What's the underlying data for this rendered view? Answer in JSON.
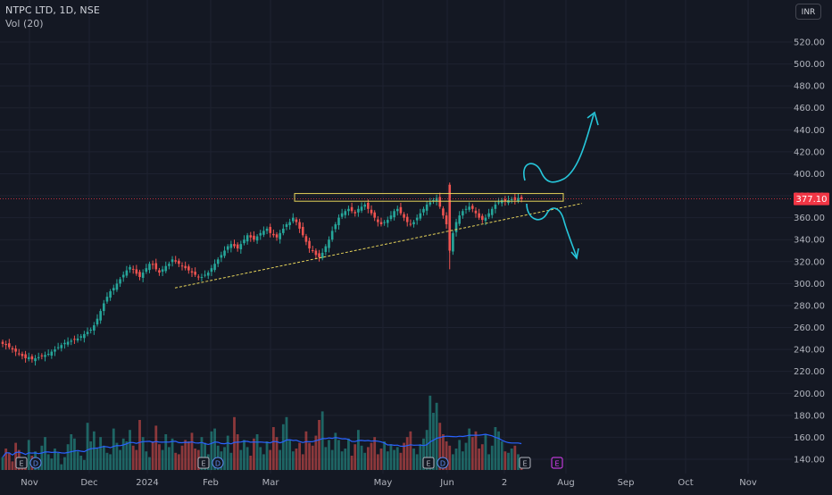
{
  "header": {
    "symbol": "NTPC LTD, 1D, NSE",
    "volume_indicator": "Vol (20)"
  },
  "currency_button": "INR",
  "colors": {
    "up": "#26a69a",
    "down": "#ef5350",
    "background": "#141823",
    "grid": "#1e2230",
    "price_line": "#f23645",
    "resistance_box": "#e6d35a",
    "trendline": "#e6d35a",
    "annotation": "#26c6da",
    "volume_ma": "#2962ff"
  },
  "chart_data": {
    "type": "candlestick",
    "last_price": "377.10",
    "y_ticks": [
      "140.00",
      "160.00",
      "180.00",
      "200.00",
      "220.00",
      "240.00",
      "260.00",
      "280.00",
      "300.00",
      "320.00",
      "340.00",
      "360.00",
      "380.00",
      "400.00",
      "420.00",
      "440.00",
      "460.00",
      "480.00",
      "500.00",
      "520.00"
    ],
    "x_ticks": [
      "Nov",
      "Dec",
      "2024",
      "Feb",
      "Mar",
      "May",
      "Jun",
      "2",
      "Aug",
      "Sep",
      "Oct",
      "Nov"
    ],
    "resistance_zone": [
      375,
      382
    ],
    "trendline": [
      {
        "x": "2024-01-24",
        "y": 296
      },
      {
        "x": "2024-08-01",
        "y": 373
      }
    ],
    "event_markers": [
      "E",
      "D",
      "E",
      "D",
      "E",
      "D",
      "E",
      "E"
    ],
    "closes": [
      245,
      244,
      242,
      240,
      238,
      236,
      234,
      232,
      233,
      231,
      232,
      233,
      234,
      235,
      236,
      238,
      240,
      242,
      244,
      246,
      247,
      248,
      249,
      250,
      252,
      254,
      256,
      258,
      262,
      268,
      275,
      282,
      288,
      293,
      296,
      300,
      304,
      308,
      312,
      315,
      313,
      309,
      306,
      310,
      314,
      318,
      317,
      313,
      310,
      313,
      316,
      318,
      322,
      320,
      318,
      316,
      314,
      312,
      310,
      308,
      306,
      306,
      308,
      310,
      314,
      318,
      322,
      326,
      330,
      334,
      336,
      334,
      332,
      336,
      340,
      344,
      342,
      340,
      343,
      346,
      348,
      350,
      346,
      344,
      342,
      346,
      350,
      354,
      356,
      360,
      356,
      350,
      344,
      338,
      332,
      330,
      326,
      324,
      328,
      334,
      340,
      348,
      354,
      360,
      364,
      366,
      368,
      366,
      364,
      368,
      370,
      372,
      368,
      364,
      360,
      356,
      354,
      356,
      358,
      362,
      366,
      368,
      364,
      360,
      356,
      354,
      356,
      360,
      364,
      368,
      372,
      374,
      376,
      378,
      370,
      362,
      354,
      330,
      346,
      356,
      362,
      366,
      368,
      370,
      368,
      364,
      360,
      358,
      360,
      364,
      368,
      372,
      374,
      376,
      375,
      376,
      377,
      376,
      378,
      377
    ],
    "volumes": [
      144,
      150,
      147,
      141,
      154,
      149,
      143,
      139,
      156,
      145,
      148,
      141,
      152,
      158,
      146,
      143,
      150,
      147,
      139,
      144,
      153,
      160,
      157,
      148,
      145,
      142,
      168,
      155,
      162,
      150,
      158,
      152,
      147,
      146,
      164,
      154,
      149,
      157,
      155,
      163,
      152,
      149,
      170,
      158,
      148,
      144,
      155,
      166,
      153,
      149,
      160,
      151,
      157,
      147,
      146,
      152,
      156,
      155,
      161,
      150,
      149,
      158,
      154,
      146,
      162,
      164,
      152,
      148,
      151,
      159,
      147,
      172,
      160,
      149,
      156,
      151,
      145,
      157,
      160,
      151,
      146,
      155,
      149,
      165,
      158,
      149,
      167,
      172,
      156,
      148,
      150,
      154,
      146,
      162,
      154,
      152,
      159,
      170,
      176,
      151,
      156,
      149,
      161,
      156,
      148,
      150,
      157,
      145,
      153,
      163,
      152,
      147,
      151,
      154,
      158,
      146,
      150,
      155,
      148,
      153,
      149,
      151,
      147,
      154,
      158,
      162,
      150,
      146,
      153,
      157,
      163,
      187,
      175,
      182,
      168,
      160,
      155,
      152,
      146,
      150,
      156,
      148,
      154,
      164,
      158,
      162,
      150,
      153,
      160,
      146,
      152,
      165,
      162,
      155,
      148,
      147,
      150,
      152,
      146,
      141
    ]
  }
}
